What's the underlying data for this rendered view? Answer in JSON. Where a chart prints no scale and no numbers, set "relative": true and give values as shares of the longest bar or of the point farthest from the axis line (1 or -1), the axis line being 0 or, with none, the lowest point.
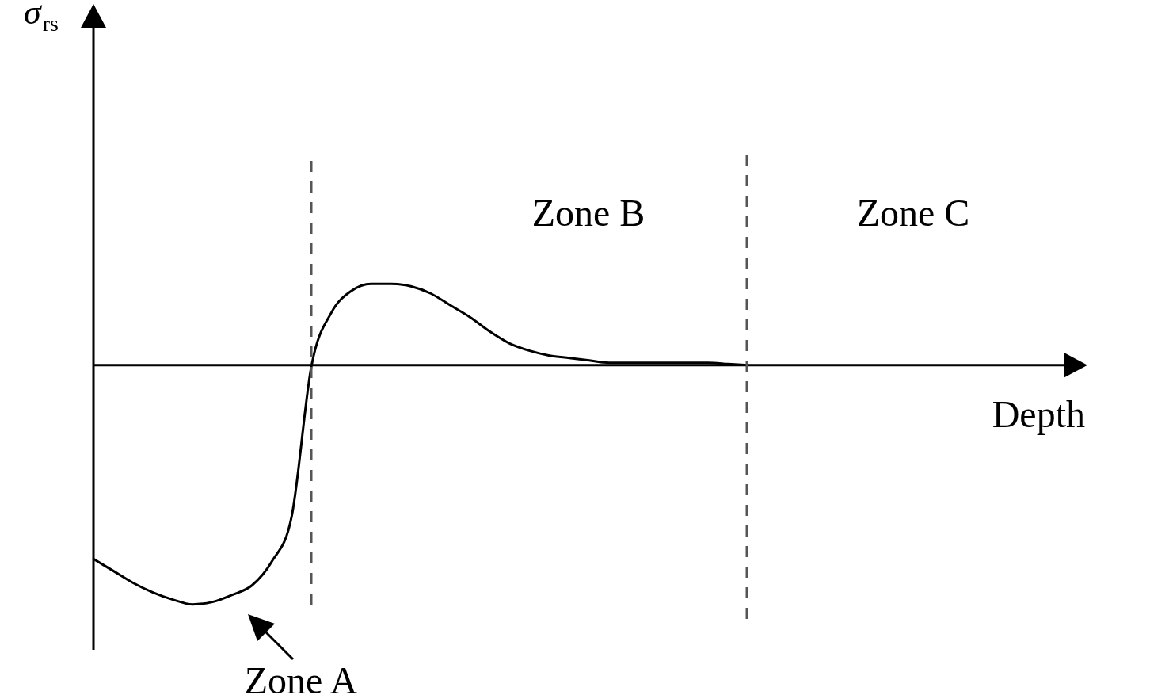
{
  "chart_data": {
    "type": "line",
    "relative": true,
    "xlabel": "Depth",
    "categories": [
      null,
      null,
      null,
      null,
      null,
      null,
      null,
      null,
      null,
      null,
      null,
      null,
      null,
      null,
      null,
      null,
      null,
      null,
      null,
      null,
      null,
      null,
      null,
      null,
      null,
      null,
      null,
      null,
      null,
      null,
      null,
      null,
      null,
      null,
      null,
      null,
      null,
      null,
      null,
      null,
      null,
      null,
      null,
      null,
      null,
      null,
      null,
      null,
      null,
      null,
      null
    ],
    "series": [
      {
        "color": "#000000",
        "values": [
          -0.81,
          -0.86,
          -0.91,
          -0.95,
          -0.98,
          -1,
          -0.99,
          -0.96,
          -0.92,
          -0.82,
          -0.63,
          0,
          0.22,
          0.31,
          0.34,
          0.34,
          0.33,
          0.3,
          0.25,
          0.2,
          0.14,
          0.09,
          0.06,
          0.04,
          0.03,
          0.02,
          0.01,
          0.01,
          0.01,
          0.01,
          0.01,
          0.01,
          0.005,
          0,
          null,
          null,
          null,
          null,
          null,
          null,
          null,
          null,
          null,
          null,
          null,
          null,
          null,
          null,
          null,
          null,
          null
        ]
      }
    ],
    "annotations": [
      "σ$_{rs}$",
      "Zone A",
      "Zone B",
      "Zone C"
    ],
    "marker": "none",
    "line_style": "solid"
  }
}
